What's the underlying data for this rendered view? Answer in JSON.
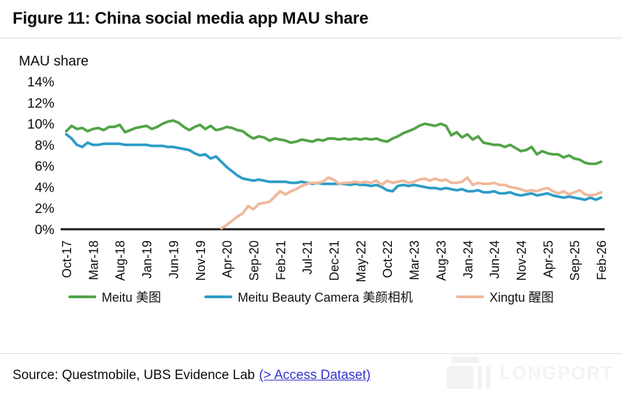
{
  "figure": {
    "title": "Figure 11: China social media app MAU share",
    "axis_title": "MAU share",
    "source_prefix": "Source: Questmobile, UBS Evidence Lab",
    "source_link": "(> Access Dataset)",
    "watermark": "LONGPORT"
  },
  "colors": {
    "meitu": "#52a447",
    "beauty_camera": "#2d9dc7",
    "xingtu": "#f0b89b",
    "axis": "#1a1a1a",
    "link": "#3333cc",
    "divider": "#dcdcdc",
    "watermark": "#f2f2f2"
  },
  "chart_data": {
    "type": "line",
    "title": "Figure 11: China social media app MAU share",
    "xlabel": "",
    "ylabel": "MAU share",
    "ylim": [
      0,
      14
    ],
    "yticks": [
      0,
      2,
      4,
      6,
      8,
      10,
      12,
      14
    ],
    "ytick_suffix": "%",
    "grid": false,
    "legend_position": "bottom",
    "x_tick_every": 5,
    "x_tick_labels": [
      "Oct-17",
      "Mar-18",
      "Aug-18",
      "Jan-19",
      "Jun-19",
      "Nov-19",
      "Apr-20",
      "Sep-20",
      "Feb-21",
      "Jul-21",
      "Dec-21",
      "May-22",
      "Oct-22",
      "Mar-23",
      "Aug-23",
      "Jan-24",
      "Jun-24",
      "Nov-24",
      "Apr-25",
      "Sep-25",
      "Feb-26"
    ],
    "x": [
      "Oct-17",
      "Nov-17",
      "Dec-17",
      "Jan-18",
      "Feb-18",
      "Mar-18",
      "Apr-18",
      "May-18",
      "Jun-18",
      "Jul-18",
      "Aug-18",
      "Sep-18",
      "Oct-18",
      "Nov-18",
      "Dec-18",
      "Jan-19",
      "Feb-19",
      "Mar-19",
      "Apr-19",
      "May-19",
      "Jun-19",
      "Jul-19",
      "Aug-19",
      "Sep-19",
      "Oct-19",
      "Nov-19",
      "Dec-19",
      "Jan-20",
      "Feb-20",
      "Mar-20",
      "Apr-20",
      "May-20",
      "Jun-20",
      "Jul-20",
      "Aug-20",
      "Sep-20",
      "Oct-20",
      "Nov-20",
      "Dec-20",
      "Jan-21",
      "Feb-21",
      "Mar-21",
      "Apr-21",
      "May-21",
      "Jun-21",
      "Jul-21",
      "Aug-21",
      "Sep-21",
      "Oct-21",
      "Nov-21",
      "Dec-21",
      "Jan-22",
      "Feb-22",
      "Mar-22",
      "Apr-22",
      "May-22",
      "Jun-22",
      "Jul-22",
      "Aug-22",
      "Sep-22",
      "Oct-22",
      "Nov-22",
      "Dec-22",
      "Jan-23",
      "Feb-23",
      "Mar-23",
      "Apr-23",
      "May-23",
      "Jun-23",
      "Jul-23",
      "Aug-23",
      "Sep-23",
      "Oct-23",
      "Nov-23",
      "Dec-23",
      "Jan-24",
      "Feb-24",
      "Mar-24",
      "Apr-24",
      "May-24",
      "Jun-24",
      "Jul-24",
      "Aug-24",
      "Sep-24",
      "Oct-24",
      "Nov-24",
      "Dec-24",
      "Jan-25",
      "Feb-25",
      "Mar-25",
      "Apr-25",
      "May-25",
      "Jun-25",
      "Jul-25",
      "Aug-25",
      "Sep-25",
      "Oct-25",
      "Nov-25",
      "Dec-25",
      "Jan-26",
      "Feb-26"
    ],
    "series": [
      {
        "name": "Meitu 美图",
        "color_key": "meitu",
        "values": [
          9.3,
          9.8,
          9.5,
          9.6,
          9.3,
          9.5,
          9.6,
          9.4,
          9.7,
          9.7,
          9.9,
          9.2,
          9.4,
          9.6,
          9.7,
          9.8,
          9.5,
          9.7,
          10.0,
          10.2,
          10.3,
          10.1,
          9.7,
          9.4,
          9.7,
          9.9,
          9.5,
          9.8,
          9.4,
          9.5,
          9.7,
          9.6,
          9.4,
          9.3,
          8.9,
          8.6,
          8.8,
          8.7,
          8.4,
          8.6,
          8.5,
          8.4,
          8.2,
          8.3,
          8.5,
          8.4,
          8.3,
          8.5,
          8.4,
          8.6,
          8.6,
          8.5,
          8.6,
          8.5,
          8.6,
          8.5,
          8.6,
          8.5,
          8.6,
          8.4,
          8.3,
          8.6,
          8.8,
          9.1,
          9.3,
          9.5,
          9.8,
          10.0,
          9.9,
          9.8,
          10.0,
          9.8,
          8.9,
          9.2,
          8.7,
          9.0,
          8.5,
          8.8,
          8.2,
          8.1,
          8.0,
          8.0,
          7.8,
          8.0,
          7.7,
          7.4,
          7.5,
          7.8,
          7.1,
          7.4,
          7.2,
          7.1,
          7.1,
          6.8,
          7.0,
          6.7,
          6.6,
          6.3,
          6.2,
          6.2,
          6.4
        ]
      },
      {
        "name": "Meitu Beauty Camera 美颜相机",
        "color_key": "beauty_camera",
        "values": [
          9.0,
          8.6,
          8.0,
          7.8,
          8.2,
          8.0,
          8.0,
          8.1,
          8.1,
          8.1,
          8.1,
          8.0,
          8.0,
          8.0,
          8.0,
          8.0,
          7.9,
          7.9,
          7.9,
          7.8,
          7.8,
          7.7,
          7.6,
          7.5,
          7.2,
          7.0,
          7.1,
          6.7,
          6.9,
          6.4,
          5.9,
          5.5,
          5.1,
          4.8,
          4.7,
          4.6,
          4.7,
          4.6,
          4.5,
          4.5,
          4.5,
          4.5,
          4.4,
          4.4,
          4.5,
          4.4,
          4.3,
          4.4,
          4.3,
          4.3,
          4.3,
          4.3,
          4.3,
          4.2,
          4.3,
          4.2,
          4.2,
          4.1,
          4.2,
          4.0,
          3.7,
          3.6,
          4.1,
          4.2,
          4.1,
          4.2,
          4.1,
          4.0,
          3.9,
          3.9,
          3.8,
          3.9,
          3.8,
          3.7,
          3.8,
          3.6,
          3.6,
          3.7,
          3.5,
          3.5,
          3.6,
          3.4,
          3.4,
          3.5,
          3.3,
          3.2,
          3.3,
          3.4,
          3.2,
          3.3,
          3.4,
          3.2,
          3.1,
          3.0,
          3.1,
          3.0,
          2.9,
          2.8,
          3.0,
          2.8,
          3.0
        ]
      },
      {
        "name": "Xingtu 醒图",
        "color_key": "xingtu",
        "values": [
          null,
          null,
          null,
          null,
          null,
          null,
          null,
          null,
          null,
          null,
          null,
          null,
          null,
          null,
          null,
          null,
          null,
          null,
          null,
          null,
          null,
          null,
          null,
          null,
          null,
          null,
          null,
          null,
          null,
          0.1,
          0.4,
          0.8,
          1.2,
          1.5,
          2.2,
          1.9,
          2.4,
          2.5,
          2.6,
          3.1,
          3.6,
          3.3,
          3.6,
          3.8,
          4.1,
          4.3,
          4.4,
          4.4,
          4.5,
          4.9,
          4.7,
          4.3,
          4.4,
          4.4,
          4.5,
          4.4,
          4.5,
          4.4,
          4.6,
          4.2,
          4.6,
          4.4,
          4.5,
          4.6,
          4.4,
          4.5,
          4.7,
          4.8,
          4.6,
          4.8,
          4.6,
          4.7,
          4.4,
          4.4,
          4.5,
          4.9,
          4.2,
          4.4,
          4.3,
          4.3,
          4.4,
          4.2,
          4.2,
          4.0,
          3.9,
          3.8,
          3.6,
          3.7,
          3.6,
          3.8,
          3.9,
          3.6,
          3.4,
          3.6,
          3.3,
          3.5,
          3.7,
          3.3,
          3.2,
          3.3,
          3.5
        ]
      }
    ]
  }
}
